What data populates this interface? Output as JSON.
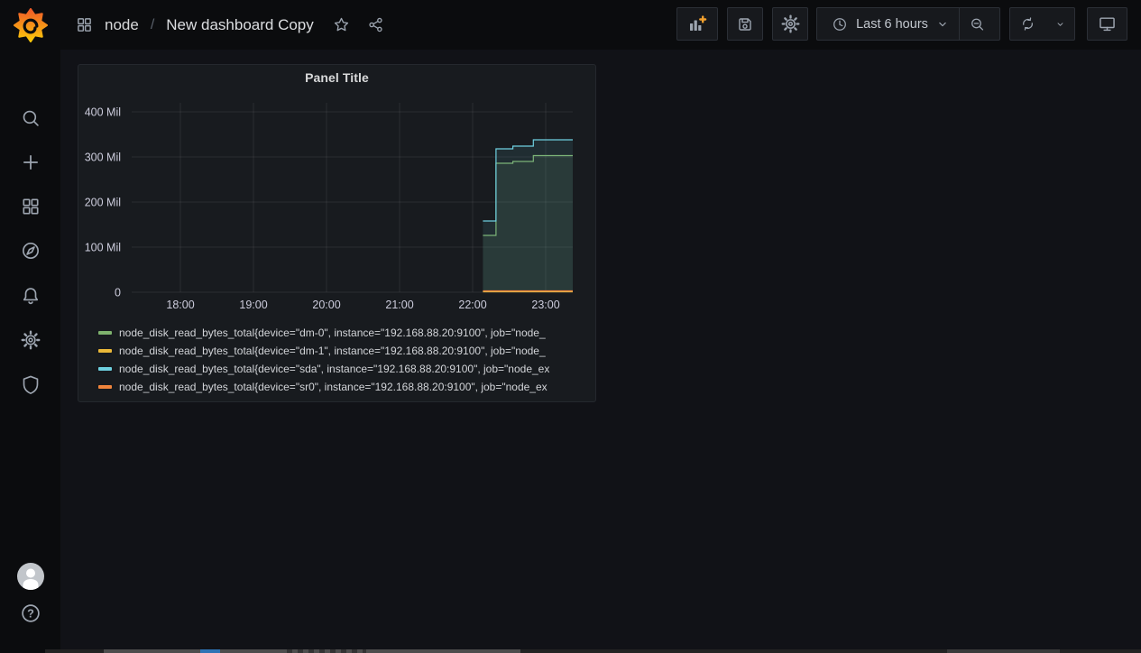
{
  "colors": {
    "background": "#111217",
    "nav_background": "#0b0c0e",
    "panel_background": "#181b1f",
    "icon_gray": "#9da5b0",
    "accent_orange_plus": "#f2a02e",
    "series_green": "#7EB26D",
    "series_yellow": "#EAB839",
    "series_blue": "#6ED0E0",
    "series_orange": "#EF843C"
  },
  "sidebar": {
    "items": [
      {
        "icon": "grafana-logo"
      },
      {
        "icon": "search"
      },
      {
        "icon": "create-plus"
      },
      {
        "icon": "dashboards-grid"
      },
      {
        "icon": "explore-compass"
      },
      {
        "icon": "alerting-bell"
      },
      {
        "icon": "configuration-gear"
      },
      {
        "icon": "server-admin-shield"
      }
    ],
    "bottom_items": [
      {
        "icon": "user-avatar"
      },
      {
        "icon": "help-question"
      }
    ]
  },
  "topbar": {
    "breadcrumb": {
      "icon": "apps-grid",
      "section": "node",
      "separator": "/",
      "title": "New dashboard Copy"
    },
    "title_actions": [
      {
        "icon": "star-outline"
      },
      {
        "icon": "share"
      }
    ],
    "actions": [
      {
        "icon": "add-panel"
      },
      {
        "icon": "save-dashboard"
      },
      {
        "icon": "dashboard-settings-gear"
      },
      {
        "icon": "clock",
        "label": "Last 6 hours"
      },
      {
        "icon": "chevron-down"
      },
      {
        "icon": "zoom-out"
      },
      {
        "icon": "refresh"
      },
      {
        "icon": "refresh-interval-chevron"
      },
      {
        "icon": "kiosk-monitor"
      }
    ],
    "time_range_label": "Last 6 hours"
  },
  "panel": {
    "title": "Panel Title"
  },
  "chart_data": {
    "type": "line",
    "title": "Panel Title",
    "style": "stepped lines with ~10% area fill",
    "grid": true,
    "legend_position": "bottom-left",
    "x_tick_labels": [
      "18:00",
      "19:00",
      "20:00",
      "21:00",
      "22:00",
      "23:00"
    ],
    "x_tick_hours": [
      18,
      19,
      20,
      21,
      22,
      23
    ],
    "x_range_hours": [
      17.333,
      23.37
    ],
    "y_tick_labels": [
      "0",
      "100 Mil",
      "200 Mil",
      "300 Mil",
      "400 Mil"
    ],
    "y_tick_values": [
      0,
      100,
      200,
      300,
      400
    ],
    "y_range": [
      0,
      400
    ],
    "y_value_unit": "Mil",
    "series": [
      {
        "name": "node_disk_read_bytes_total{device=\"dm-0\", instance=\"192.168.88.20:9100\", job=\"node_",
        "color": "#7EB26D",
        "points": [
          [
            22.14,
            126
          ],
          [
            22.32,
            126
          ],
          [
            22.32,
            286
          ],
          [
            22.55,
            286
          ],
          [
            22.55,
            290
          ],
          [
            22.83,
            290
          ],
          [
            22.83,
            303
          ],
          [
            23.37,
            303
          ]
        ]
      },
      {
        "name": "node_disk_read_bytes_total{device=\"dm-1\", instance=\"192.168.88.20:9100\", job=\"node_",
        "color": "#EAB839",
        "points": [
          [
            22.14,
            1
          ],
          [
            23.37,
            1
          ]
        ]
      },
      {
        "name": "node_disk_read_bytes_total{device=\"sda\", instance=\"192.168.88.20:9100\", job=\"node_ex",
        "color": "#6ED0E0",
        "points": [
          [
            22.14,
            158
          ],
          [
            22.32,
            158
          ],
          [
            22.32,
            318
          ],
          [
            22.55,
            318
          ],
          [
            22.55,
            324
          ],
          [
            22.83,
            324
          ],
          [
            22.83,
            338
          ],
          [
            23.37,
            338
          ]
        ]
      },
      {
        "name": "node_disk_read_bytes_total{device=\"sr0\", instance=\"192.168.88.20:9100\", job=\"node_ex",
        "color": "#EF843C",
        "points": [
          [
            22.14,
            3
          ],
          [
            23.37,
            3
          ]
        ]
      }
    ]
  }
}
